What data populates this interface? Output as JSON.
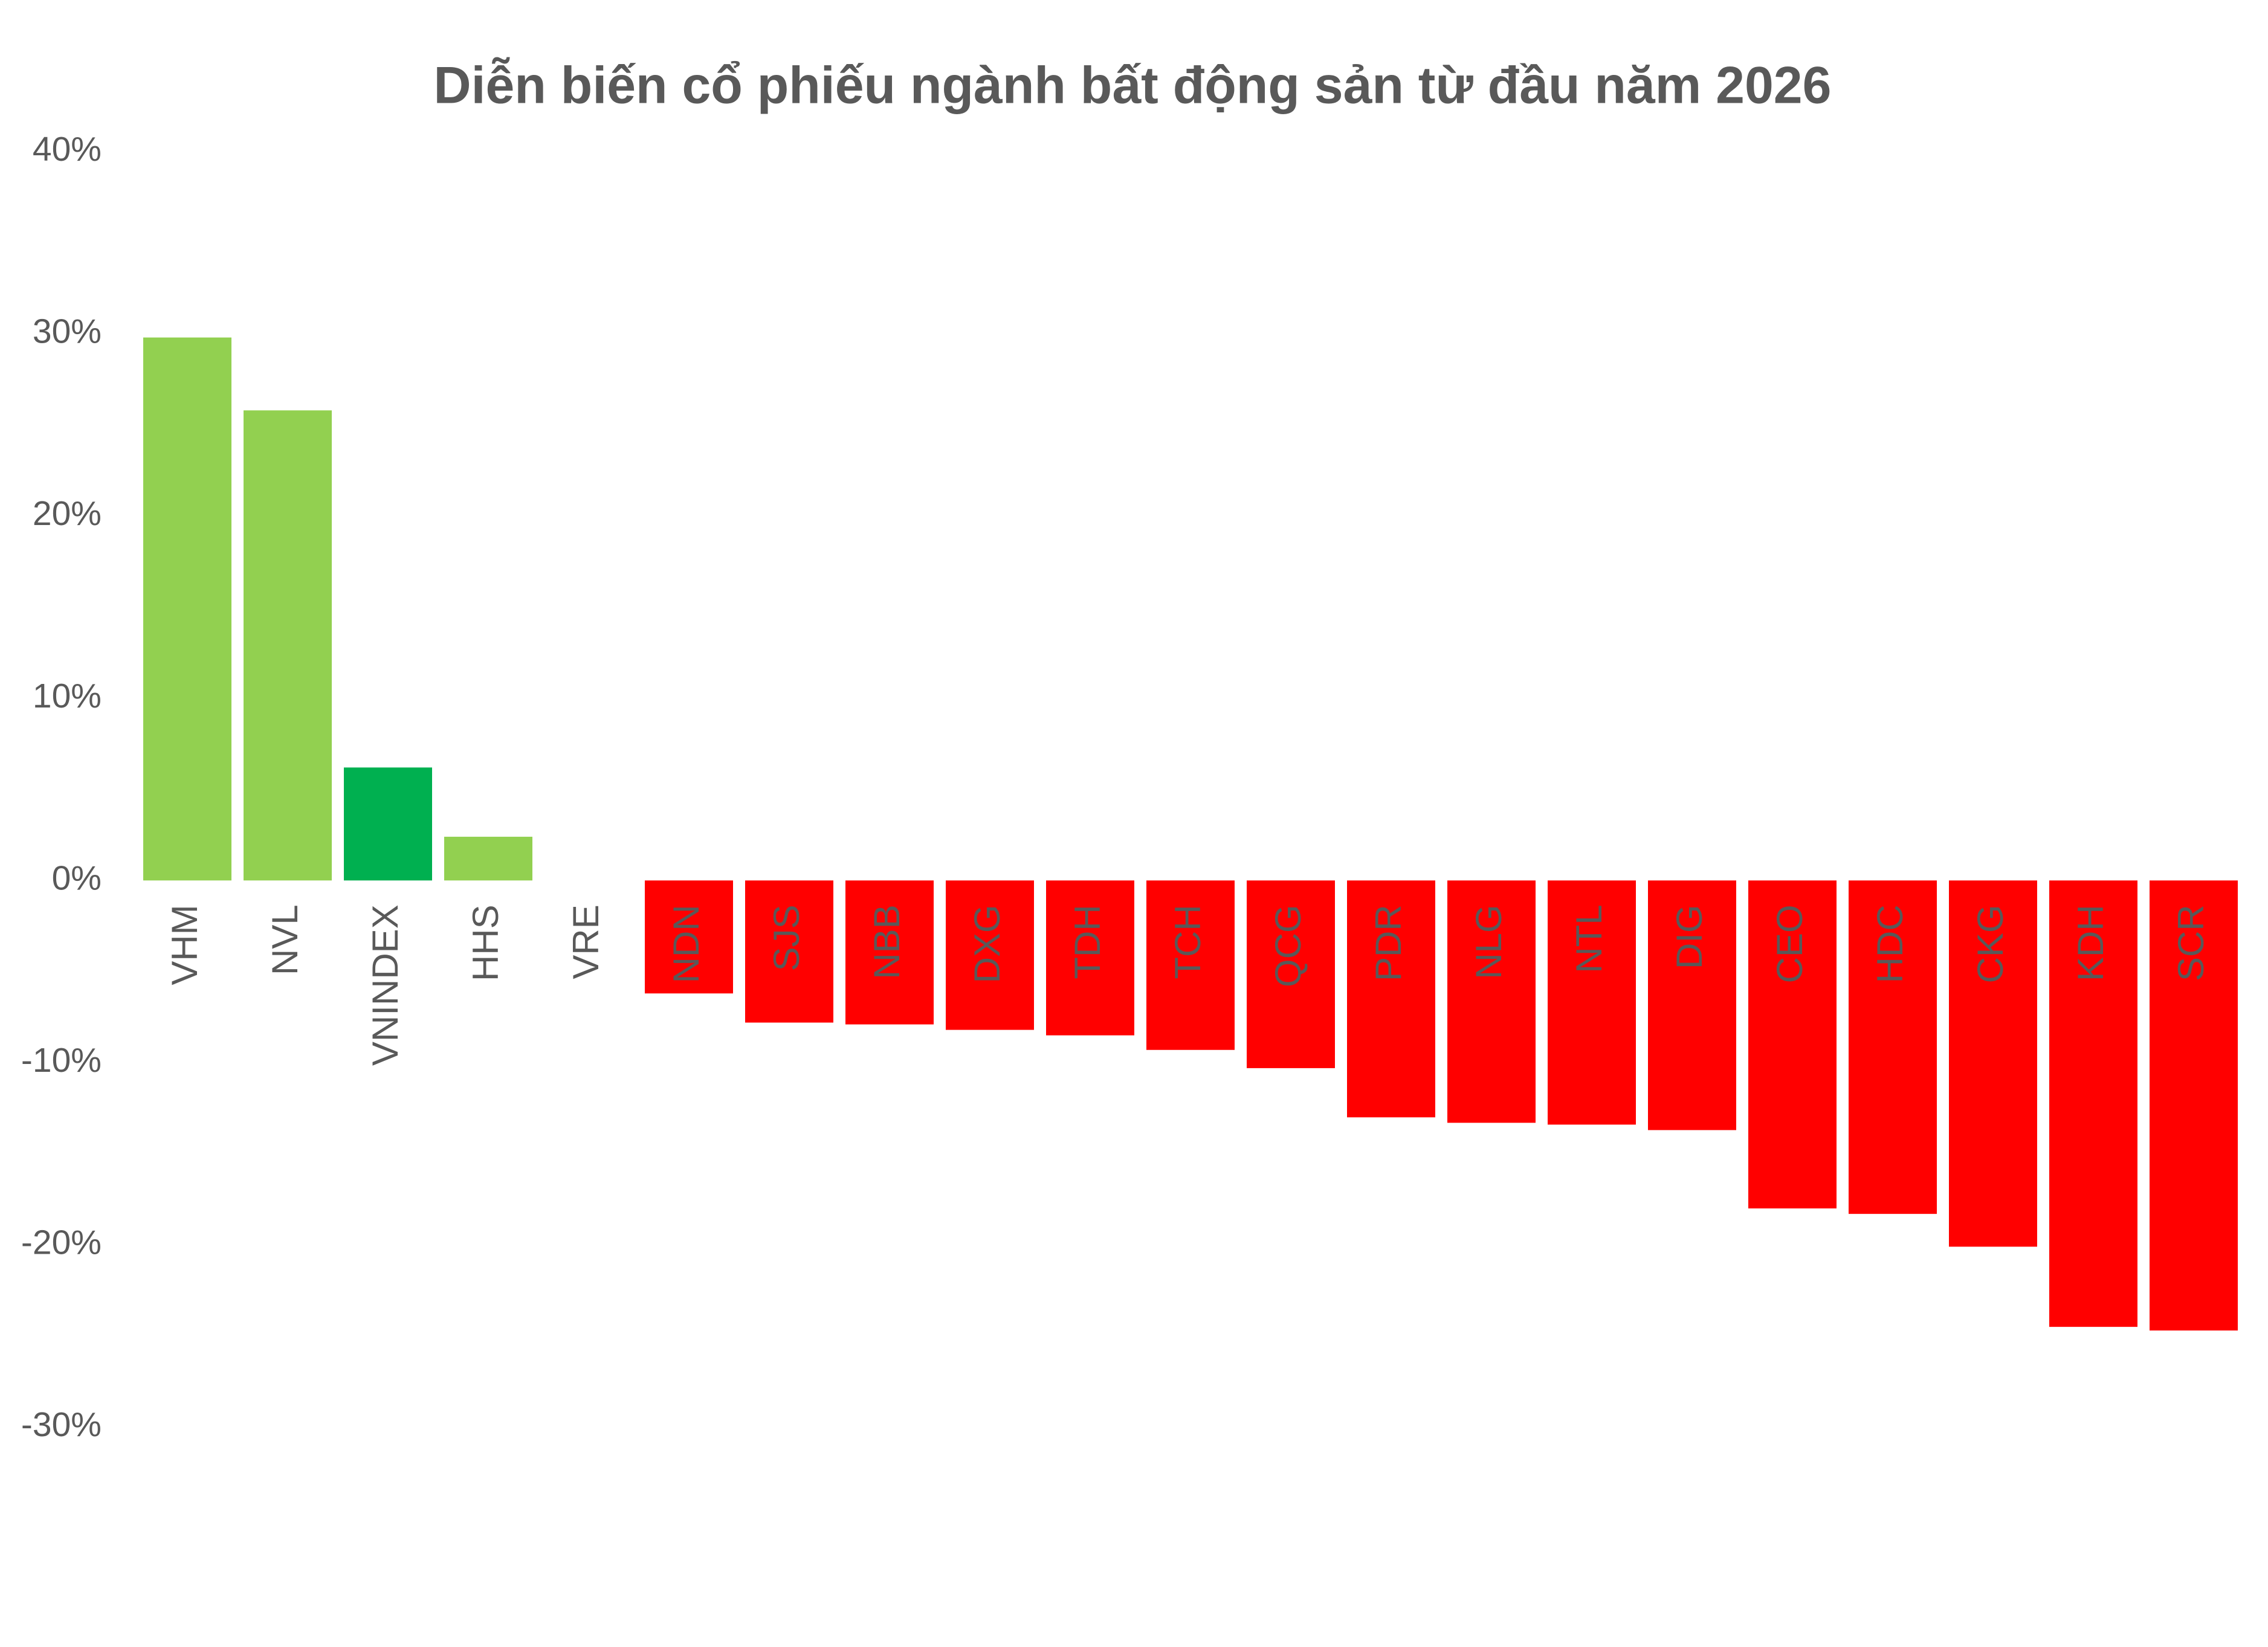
{
  "chart_data": {
    "type": "bar",
    "title": "Diễn biến cổ phiếu ngành bất động sản từ đầu năm 2026",
    "categories": [
      "VHM",
      "NVL",
      "VNINDEX",
      "HHS",
      "VRE",
      "NDN",
      "SJS",
      "NBB",
      "DXG",
      "TDH",
      "TCH",
      "QCG",
      "PDR",
      "NLG",
      "NTL",
      "DIG",
      "CEO",
      "HDC",
      "CKG",
      "KDH",
      "SCR"
    ],
    "values": [
      29.8,
      25.8,
      6.2,
      2.4,
      0,
      -6.2,
      -7.8,
      -7.9,
      -8.2,
      -8.5,
      -9.3,
      -10.3,
      -13.0,
      -13.3,
      -13.4,
      -13.7,
      -18.0,
      -18.3,
      -20.1,
      -24.5,
      -24.7
    ],
    "colors": [
      "#92d050",
      "#92d050",
      "#00b050",
      "#92d050",
      "#000000",
      "#ff0000",
      "#ff0000",
      "#ff0000",
      "#ff0000",
      "#ff0000",
      "#ff0000",
      "#ff0000",
      "#ff0000",
      "#ff0000",
      "#ff0000",
      "#ff0000",
      "#ff0000",
      "#ff0000",
      "#ff0000",
      "#ff0000",
      "#ff0000"
    ],
    "ylim": [
      -30,
      40
    ],
    "yticks": [
      {
        "value": 40,
        "label": "40%"
      },
      {
        "value": 30,
        "label": "30%"
      },
      {
        "value": 20,
        "label": "20%"
      },
      {
        "value": 10,
        "label": "10%"
      },
      {
        "value": 0,
        "label": "0%"
      },
      {
        "value": -10,
        "label": "-10%"
      },
      {
        "value": -20,
        "label": "-20%"
      },
      {
        "value": -30,
        "label": "-30%"
      }
    ],
    "grid": false
  }
}
